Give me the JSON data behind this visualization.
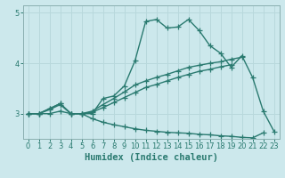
{
  "xlabel": "Humidex (Indice chaleur)",
  "background_color": "#cce8ec",
  "line_color": "#2a7a70",
  "grid_color": "#b8d8dc",
  "spine_color": "#8aafb0",
  "xlim": [
    -0.5,
    23.5
  ],
  "ylim": [
    2.5,
    5.15
  ],
  "yticks": [
    3,
    4,
    5
  ],
  "xticks": [
    0,
    1,
    2,
    3,
    4,
    5,
    6,
    7,
    8,
    9,
    10,
    11,
    12,
    13,
    14,
    15,
    16,
    17,
    18,
    19,
    20,
    21,
    22,
    23
  ],
  "lines": [
    [
      3.0,
      3.0,
      3.1,
      3.2,
      3.0,
      3.0,
      3.0,
      3.3,
      3.35,
      3.55,
      4.05,
      4.83,
      4.87,
      4.7,
      4.72,
      4.87,
      4.65,
      4.35,
      4.2,
      3.92,
      4.15,
      3.72,
      3.05,
      2.65
    ],
    [
      3.0,
      3.0,
      3.1,
      3.2,
      3.0,
      3.0,
      3.05,
      3.18,
      3.3,
      3.43,
      3.57,
      3.65,
      3.72,
      3.78,
      3.85,
      3.92,
      3.96,
      4.0,
      4.03,
      4.08,
      4.12,
      null,
      null,
      null
    ],
    [
      3.0,
      3.0,
      3.08,
      3.18,
      3.0,
      3.0,
      3.03,
      3.12,
      3.22,
      3.32,
      3.42,
      3.52,
      3.58,
      3.65,
      3.72,
      3.78,
      3.84,
      3.88,
      3.93,
      3.97,
      null,
      null,
      null,
      null
    ],
    [
      3.0,
      3.0,
      3.0,
      3.05,
      3.0,
      3.0,
      2.9,
      2.83,
      2.78,
      2.74,
      2.7,
      2.67,
      2.65,
      2.63,
      2.62,
      2.61,
      2.59,
      2.58,
      2.56,
      2.55,
      2.53,
      2.52,
      2.62,
      null
    ]
  ],
  "marker": "+",
  "markersize": 4,
  "linewidth": 1.0,
  "markeredgewidth": 0.9,
  "tick_fontsize": 6,
  "label_fontsize": 7.5
}
